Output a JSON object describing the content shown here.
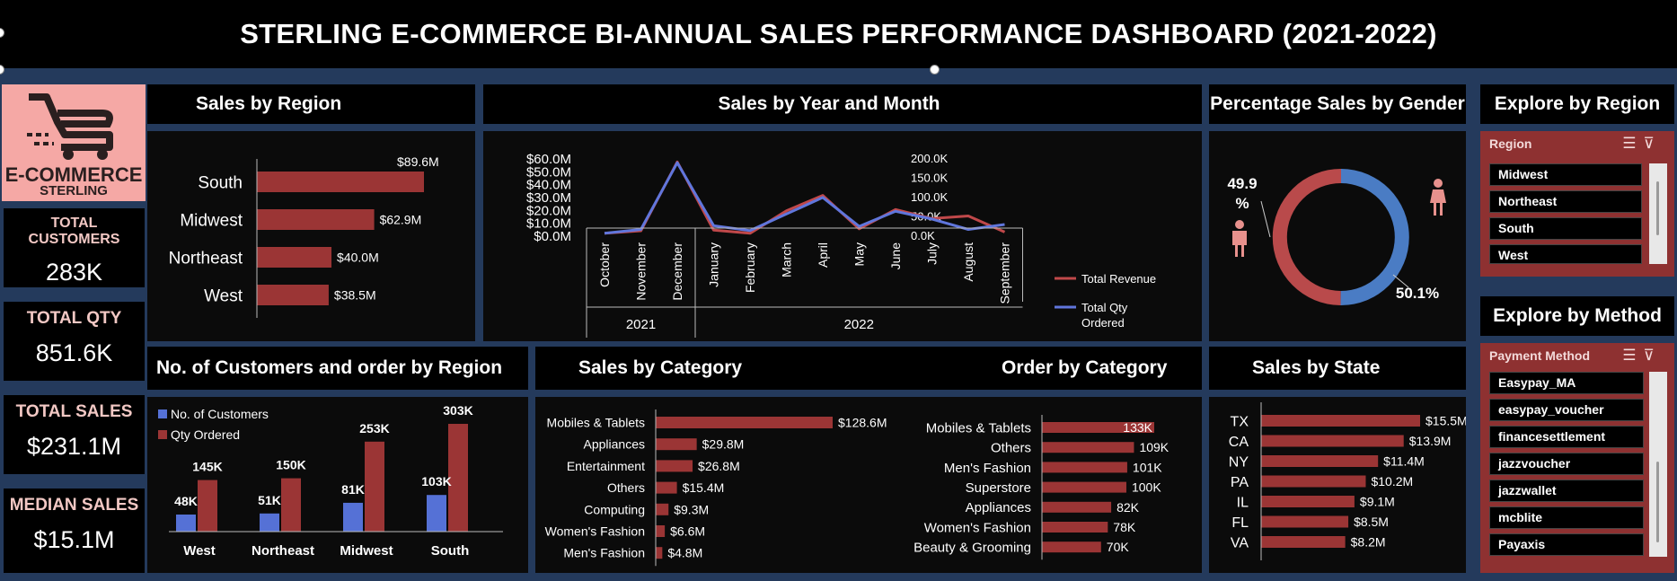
{
  "title": "STERLING E-COMMERCE BI-ANNUAL SALES PERFORMANCE DASHBOARD (2021-2022)",
  "logo": {
    "line1": "E-COMMERCE",
    "line2": "STERLING"
  },
  "kpis": [
    {
      "label": "TOTAL CUSTOMERS",
      "value": "283K"
    },
    {
      "label": "TOTAL QTY",
      "value": "851.6K"
    },
    {
      "label": "TOTAL SALES",
      "value": "$231.1M"
    },
    {
      "label": "MEDIAN SALES",
      "value": "$15.1M"
    }
  ],
  "panels": {
    "sales_by_region": "Sales by Region",
    "sales_by_year_month": "Sales by Year and Month",
    "gender": "Percentage Sales by Gender",
    "explore_region": "Explore by Region",
    "explore_method": "Explore by Method",
    "customers_orders": "No. of Customers and order by Region",
    "sales_by_category": "Sales by Category",
    "order_by_category": "Order by Category",
    "sales_by_state": "Sales by State"
  },
  "colors": {
    "red": "#9b3535",
    "blue": "#5571d6",
    "line_red": "#c0484a",
    "line_blue": "#6076dc",
    "donut_red": "#b94a4b",
    "donut_blue": "#4a7cc4",
    "slicer": "#8e3131"
  },
  "slicers": {
    "region": {
      "header": "Region",
      "items": [
        "Midwest",
        "Northeast",
        "South",
        "West"
      ]
    },
    "method": {
      "header": "Payment Method",
      "items": [
        "Easypay_MA",
        "easypay_voucher",
        "financesettlement",
        "jazzvoucher",
        "jazzwallet",
        "mcblite",
        "Payaxis"
      ]
    }
  },
  "chart_data": [
    {
      "id": "sales_by_region",
      "type": "bar",
      "orientation": "horizontal",
      "title": "Sales by Region",
      "categories": [
        "South",
        "Midwest",
        "Northeast",
        "West"
      ],
      "values": [
        89.6,
        62.9,
        40.0,
        38.5
      ],
      "labels": [
        "$89.6M",
        "$62.9M",
        "$40.0M",
        "$38.5M"
      ],
      "unit": "$M"
    },
    {
      "id": "sales_by_year_month",
      "type": "line",
      "title": "Sales by Year and Month",
      "categories": [
        "October",
        "November",
        "December",
        "January",
        "February",
        "March",
        "April",
        "May",
        "June",
        "July",
        "August",
        "September"
      ],
      "year_groups": [
        {
          "label": "2021",
          "count": 3
        },
        {
          "label": "2022",
          "count": 9
        }
      ],
      "y_left_ticks": [
        "$60.0M",
        "$50.0M",
        "$40.0M",
        "$30.0M",
        "$20.0M",
        "$10.0M",
        "$0.0M"
      ],
      "y_left_range": [
        0,
        60
      ],
      "y_right_ticks": [
        "200.0K",
        "150.0K",
        "100.0K",
        "50.0K",
        "0.0K"
      ],
      "y_right_range": [
        0,
        200
      ],
      "series": [
        {
          "name": "Total Revenue",
          "axis": "left",
          "unit": "$M",
          "values": [
            1.5,
            3.5,
            57.0,
            4.0,
            1.5,
            19.0,
            31.0,
            5.0,
            20.0,
            13.0,
            15.0,
            2.5
          ]
        },
        {
          "name": "Total Qty Ordered",
          "axis": "right",
          "unit": "K",
          "values": [
            5,
            15,
            188,
            25,
            12,
            55,
            98,
            23,
            62,
            42,
            15,
            28
          ]
        }
      ],
      "legend": [
        "Total Revenue",
        "Total Qty Ordered"
      ],
      "legend_position": "right"
    },
    {
      "id": "gender",
      "type": "pie",
      "variant": "donut",
      "title": "Percentage Sales by Gender",
      "labels": [
        "Female",
        "Male"
      ],
      "values": [
        49.9,
        50.1
      ],
      "value_labels": [
        "49.9 %",
        "50.1%"
      ]
    },
    {
      "id": "customers_orders",
      "type": "bar",
      "title": "No. of Customers and order by Region",
      "categories": [
        "West",
        "Northeast",
        "Midwest",
        "South"
      ],
      "series": [
        {
          "name": "No. of Customers",
          "values": [
            48,
            51,
            81,
            103
          ],
          "labels": [
            "48K",
            "51K",
            "81K",
            "103K"
          ]
        },
        {
          "name": "Qty Ordered",
          "values": [
            145,
            150,
            253,
            303
          ],
          "labels": [
            "145K",
            "150K",
            "253K",
            "303K"
          ]
        }
      ],
      "legend_position": "top-left"
    },
    {
      "id": "sales_by_category",
      "type": "bar",
      "orientation": "horizontal",
      "title": "Sales by Category",
      "categories": [
        "Mobiles & Tablets",
        "Appliances",
        "Entertainment",
        "Others",
        "Computing",
        "Women's Fashion",
        "Men's Fashion"
      ],
      "values": [
        128.6,
        29.8,
        26.8,
        15.4,
        9.3,
        6.6,
        4.8
      ],
      "labels": [
        "$128.6M",
        "$29.8M",
        "$26.8M",
        "$15.4M",
        "$9.3M",
        "$6.6M",
        "$4.8M"
      ],
      "unit": "$M"
    },
    {
      "id": "order_by_category",
      "type": "bar",
      "orientation": "horizontal",
      "title": "Order by Category",
      "categories": [
        "Mobiles & Tablets",
        "Others",
        "Men's Fashion",
        "Superstore",
        "Appliances",
        "Women's Fashion",
        "Beauty & Grooming"
      ],
      "values": [
        133,
        109,
        101,
        100,
        82,
        78,
        70
      ],
      "labels": [
        "133K",
        "109K",
        "101K",
        "100K",
        "82K",
        "78K",
        "70K"
      ],
      "unit": "K"
    },
    {
      "id": "sales_by_state",
      "type": "bar",
      "orientation": "horizontal",
      "title": "Sales by State",
      "categories": [
        "TX",
        "CA",
        "NY",
        "PA",
        "IL",
        "FL",
        "VA"
      ],
      "values": [
        15.5,
        13.9,
        11.4,
        10.2,
        9.1,
        8.5,
        8.2
      ],
      "labels": [
        "$15.5M",
        "$13.9M",
        "$11.4M",
        "$10.2M",
        "$9.1M",
        "$8.5M",
        "$8.2M"
      ],
      "unit": "$M"
    }
  ]
}
